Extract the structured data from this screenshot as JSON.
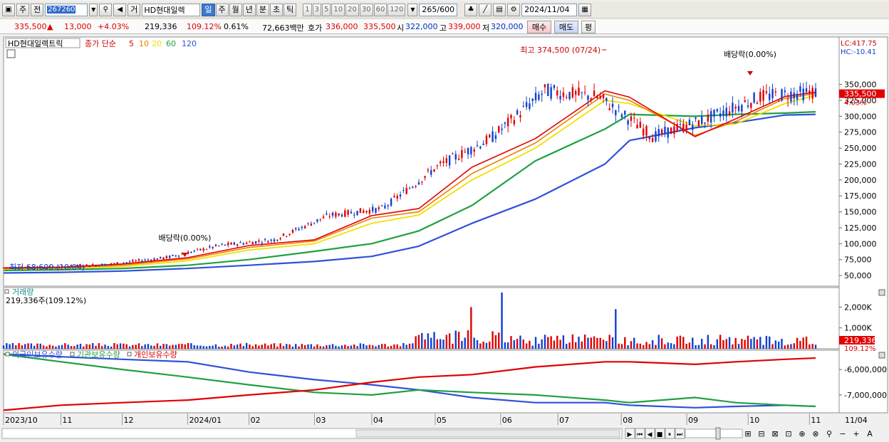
{
  "toolbar": {
    "period_type": "주",
    "prev_label": "전",
    "code": "267260",
    "trade_label": "거",
    "stock_name": "HD현대일렉",
    "timeframes": [
      "일",
      "주",
      "월",
      "년",
      "분",
      "초",
      "틱"
    ],
    "active_timeframe": "일",
    "intervals": [
      "1",
      "3",
      "5",
      "10",
      "20",
      "30",
      "60",
      "120"
    ],
    "count": "265",
    "count_total": "/600",
    "date": "2024/11/04"
  },
  "quote": {
    "price": "335,500",
    "change_arrow": "▲",
    "change": "13,000",
    "change_pct": "+4.03%",
    "volume": "219,336",
    "volume_ratio": "109.12%",
    "turnover": "0.61%",
    "amount": "72,663백만",
    "bid_label": "호가",
    "bid": "336,000",
    "ask": "335,500",
    "open_label": "시",
    "open": "322,000",
    "high_label": "고",
    "high": "339,000",
    "low_label": "저",
    "low": "320,000",
    "buy_button": "매수",
    "sell_button": "매도",
    "eval_button": "평"
  },
  "colors": {
    "ma5": "#e00000",
    "ma10": "#f08000",
    "ma20": "#f0e000",
    "ma60": "#20a040",
    "ma120": "#3050d8",
    "foreign": "#3050d8",
    "institution": "#20a040",
    "individual": "#e00000"
  },
  "chart_data": [
    {
      "type": "line",
      "title": "HD현대일렉트릭",
      "legend_prefix": "종가 단순",
      "series": [
        {
          "name": "5",
          "values": [
            62000,
            63000,
            68000,
            78000,
            97000,
            106000,
            144000,
            155000,
            220000,
            265000,
            340000,
            330000,
            268000,
            296000,
            331000,
            338000
          ]
        },
        {
          "name": "10",
          "values": [
            61000,
            62000,
            66000,
            76000,
            94000,
            104000,
            140000,
            150000,
            210000,
            258000,
            335000,
            325000,
            270000,
            292000,
            328000,
            336000
          ]
        },
        {
          "name": "20",
          "values": [
            60000,
            61500,
            64000,
            73000,
            90000,
            100000,
            132000,
            145000,
            200000,
            250000,
            325000,
            320000,
            285000,
            288000,
            320000,
            333000
          ]
        },
        {
          "name": "60",
          "values": [
            58000,
            59000,
            61000,
            66000,
            75000,
            88000,
            100000,
            120000,
            160000,
            230000,
            280000,
            303000,
            300000,
            303000,
            305000,
            307000
          ]
        },
        {
          "name": "120",
          "values": [
            54000,
            55000,
            57000,
            61000,
            66000,
            72000,
            80000,
            96000,
            132000,
            170000,
            225000,
            262000,
            282000,
            290000,
            302000,
            303000
          ]
        }
      ],
      "x": [
        "2023/10/04",
        "2023/11/01",
        "2023/12/01",
        "2024/01/02",
        "2024/02/01",
        "2024/03/04",
        "2024/04/01",
        "2024/04/24",
        "2024/05/20",
        "2024/06/20",
        "2024/07/24",
        "2024/08/05",
        "2024/09/06",
        "2024/09/26",
        "2024/10/20",
        "2024/11/04"
      ],
      "yticks": [
        "350,000",
        "325,000",
        "300,000",
        "275,000",
        "250,000",
        "225,000",
        "200,000",
        "175,000",
        "150,000",
        "125,000",
        "100,000",
        "75,000",
        "50,000"
      ],
      "ylim": [
        40000,
        420000
      ],
      "annotations": {
        "high": "최고 374,500 (07/24)",
        "low": "최저 68,600 (10/04)",
        "dividend": "배당락(0.00%)"
      },
      "last_label": "335,500",
      "last_change": "4.03%",
      "lc_label": "LC:417.75",
      "hc_label": "HC:-10.41"
    },
    {
      "type": "bar",
      "title": "거래량",
      "subtitle": "219,336주(109.12%)",
      "yticks": [
        "2,000K",
        "1,000K"
      ],
      "ylim": [
        0,
        2800000
      ],
      "peaks": [
        {
          "date": "2024/05/20",
          "value": 2000000
        },
        {
          "date": "2024/06/04",
          "value": 2700000
        },
        {
          "date": "2024/07/29",
          "value": 1900000
        }
      ],
      "last_label": "219,336",
      "last_ratio": "109.12%"
    },
    {
      "type": "line",
      "series": [
        {
          "name": "외국인보유수량",
          "values": [
            -5400000,
            -5500000,
            -5600000,
            -5700000,
            -6100000,
            -6400000,
            -6600000,
            -6800000,
            -7100000,
            -7300000,
            -7300000,
            -7400000,
            -7500000,
            -7450000,
            -7400000,
            -7450000
          ]
        },
        {
          "name": "기관보유수량",
          "values": [
            -5400000,
            -5700000,
            -6000000,
            -6300000,
            -6600000,
            -6900000,
            -7000000,
            -6800000,
            -6900000,
            -7000000,
            -7200000,
            -7300000,
            -7100000,
            -7300000,
            -7400000,
            -7450000
          ]
        },
        {
          "name": "개인보유수량",
          "values": [
            -7600000,
            -7400000,
            -7300000,
            -7200000,
            -7000000,
            -6800000,
            -6500000,
            -6300000,
            -6200000,
            -5900000,
            -5700000,
            -5700000,
            -5800000,
            -5700000,
            -5600000,
            -5550000
          ]
        }
      ],
      "yticks": [
        "-6,000,000",
        "-7,000,000"
      ],
      "ylim": [
        -7700000,
        -5300000
      ]
    }
  ],
  "xaxis": {
    "ticks": [
      "2023/10",
      "11",
      "12",
      "2024/01",
      "02",
      "03",
      "04",
      "05",
      "06",
      "07",
      "08",
      "09",
      "10",
      "11"
    ],
    "end_label": "11/04"
  }
}
